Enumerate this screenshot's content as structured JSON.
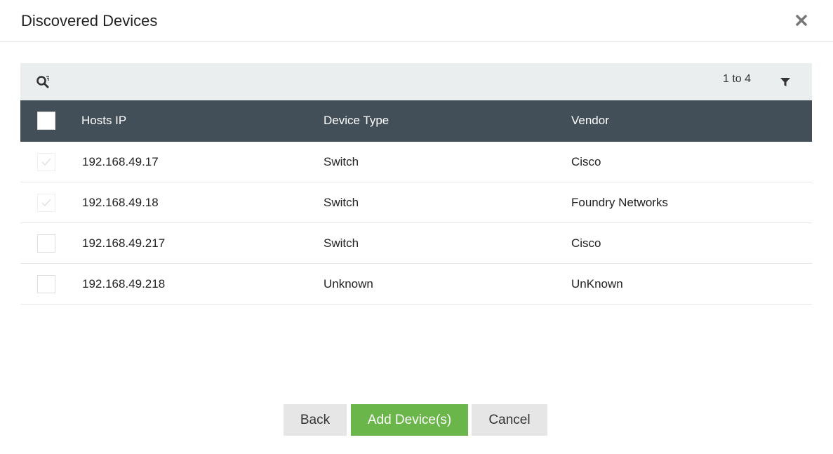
{
  "dialog": {
    "title": "Discovered Devices",
    "close_icon": "close-icon"
  },
  "toolbar": {
    "search_icon": "search-icon",
    "range": "1 to 4",
    "filter_icon": "filter-icon"
  },
  "table": {
    "columns": [
      "Hosts IP",
      "Device Type",
      "Vendor"
    ],
    "rows": [
      {
        "ip": "192.168.49.17",
        "type": "Switch",
        "vendor": "Cisco",
        "checked": true,
        "disabled": true
      },
      {
        "ip": "192.168.49.18",
        "type": "Switch",
        "vendor": "Foundry Networks",
        "checked": true,
        "disabled": true
      },
      {
        "ip": "192.168.49.217",
        "type": "Switch",
        "vendor": "Cisco",
        "checked": false,
        "disabled": false
      },
      {
        "ip": "192.168.49.218",
        "type": "Unknown",
        "vendor": "UnKnown",
        "checked": false,
        "disabled": false
      }
    ]
  },
  "buttons": {
    "back": "Back",
    "add": "Add Device(s)",
    "cancel": "Cancel"
  },
  "colors": {
    "header_bg": "#434f58",
    "toolbar_bg": "#ebeeee",
    "primary": "#6ab64a",
    "secondary": "#e6e6e6"
  }
}
